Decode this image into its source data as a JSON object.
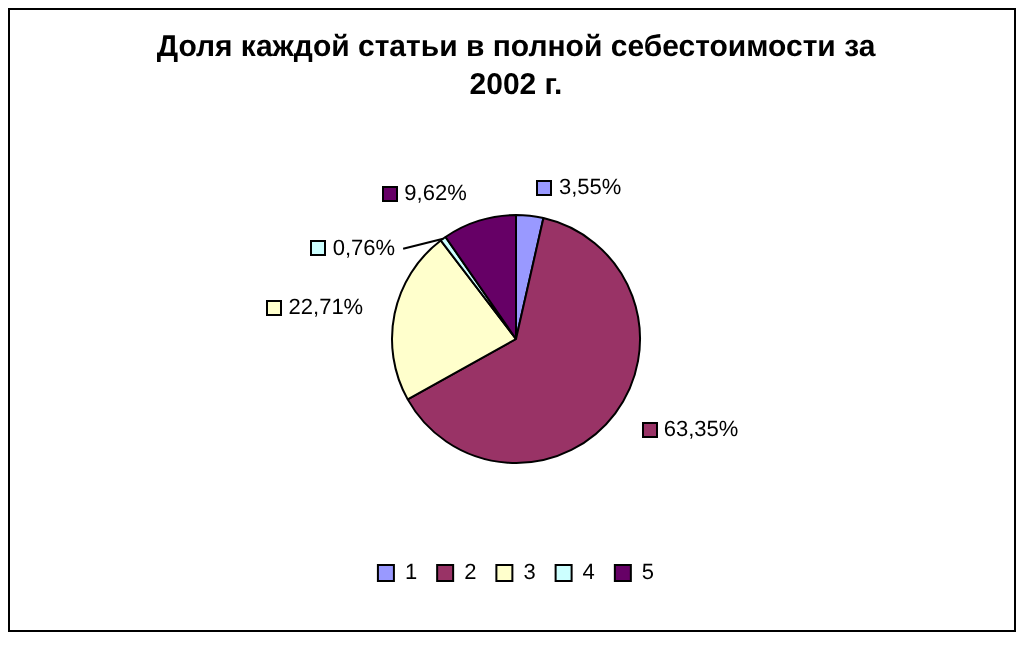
{
  "chart_data": {
    "type": "pie",
    "title": "Доля каждой статьи в полной себестоимости за 2002 г.",
    "categories": [
      "1",
      "2",
      "3",
      "4",
      "5"
    ],
    "values": [
      3.55,
      63.35,
      22.71,
      0.76,
      9.62
    ],
    "value_labels": [
      "3,55%",
      "63,35%",
      "22,71%",
      "0,76%",
      "9,62%"
    ],
    "colors": [
      "#9999ff",
      "#993366",
      "#ffffcc",
      "#ccffff",
      "#660066"
    ],
    "legend": "bottom"
  }
}
